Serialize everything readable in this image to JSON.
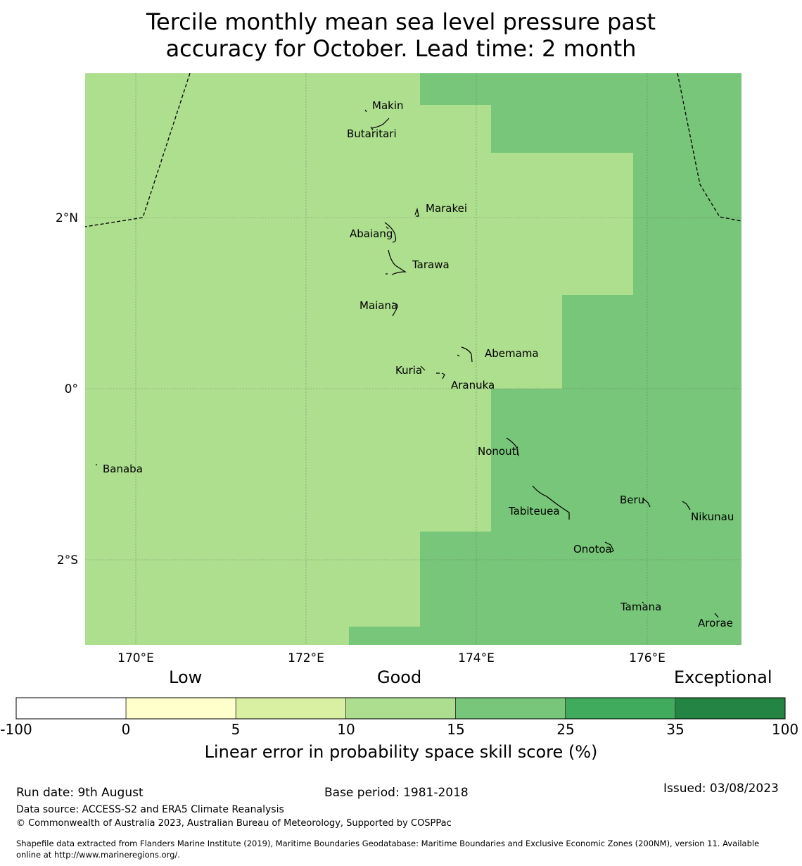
{
  "title": {
    "line1": "Tercile monthly mean sea level pressure past",
    "line2": "accuracy for October. Lead time: 2 month"
  },
  "map": {
    "lon_ticks": [
      "170°E",
      "172°E",
      "174°E",
      "176°E"
    ],
    "lat_ticks": [
      "2°N",
      "0°",
      "2°S"
    ],
    "islands": [
      {
        "name": "Makin"
      },
      {
        "name": "Butaritari"
      },
      {
        "name": "Marakei"
      },
      {
        "name": "Abaiang"
      },
      {
        "name": "Tarawa"
      },
      {
        "name": "Maiana"
      },
      {
        "name": "Abemama"
      },
      {
        "name": "Kuria"
      },
      {
        "name": "Aranuka"
      },
      {
        "name": "Nonouti"
      },
      {
        "name": "Banaba"
      },
      {
        "name": "Beru"
      },
      {
        "name": "Tabiteuea"
      },
      {
        "name": "Nikunau"
      },
      {
        "name": "Onotoa"
      },
      {
        "name": "Tamana"
      },
      {
        "name": "Arorae"
      }
    ],
    "colors": {
      "skill_10_15": "#addf8e",
      "skill_15_25": "#78c679"
    }
  },
  "colorbar": {
    "categories": [
      "Low",
      "Good",
      "Exceptional"
    ],
    "ticks": [
      "-100",
      "0",
      "5",
      "10",
      "15",
      "25",
      "35",
      "100"
    ],
    "colors": [
      "#ffffff",
      "#ffffcc",
      "#d9f0a3",
      "#addd8e",
      "#78c679",
      "#41ab5d",
      "#238443"
    ],
    "label": "Linear error in probability space skill score (%)"
  },
  "footer": {
    "run_date": "Run date: 9th August",
    "base_period": "Base period: 1981-2018",
    "issued": "Issued: 03/08/2023",
    "data_source": "Data source: ACCESS-S2 and ERA5 Climate Reanalysis",
    "copyright": "© Commonwealth of Australia 2023, Australian Bureau of Meteorology, Supported by COSPPac",
    "shapefile_line1": "Shapefile data extracted from Flanders Marine Institute (2019), Maritime Boundaries Geodatabase: Maritime Boundaries and Exclusive Economic Zones (200NM), version 11. Available",
    "shapefile_line2": "online at http://www.marineregions.org/."
  }
}
